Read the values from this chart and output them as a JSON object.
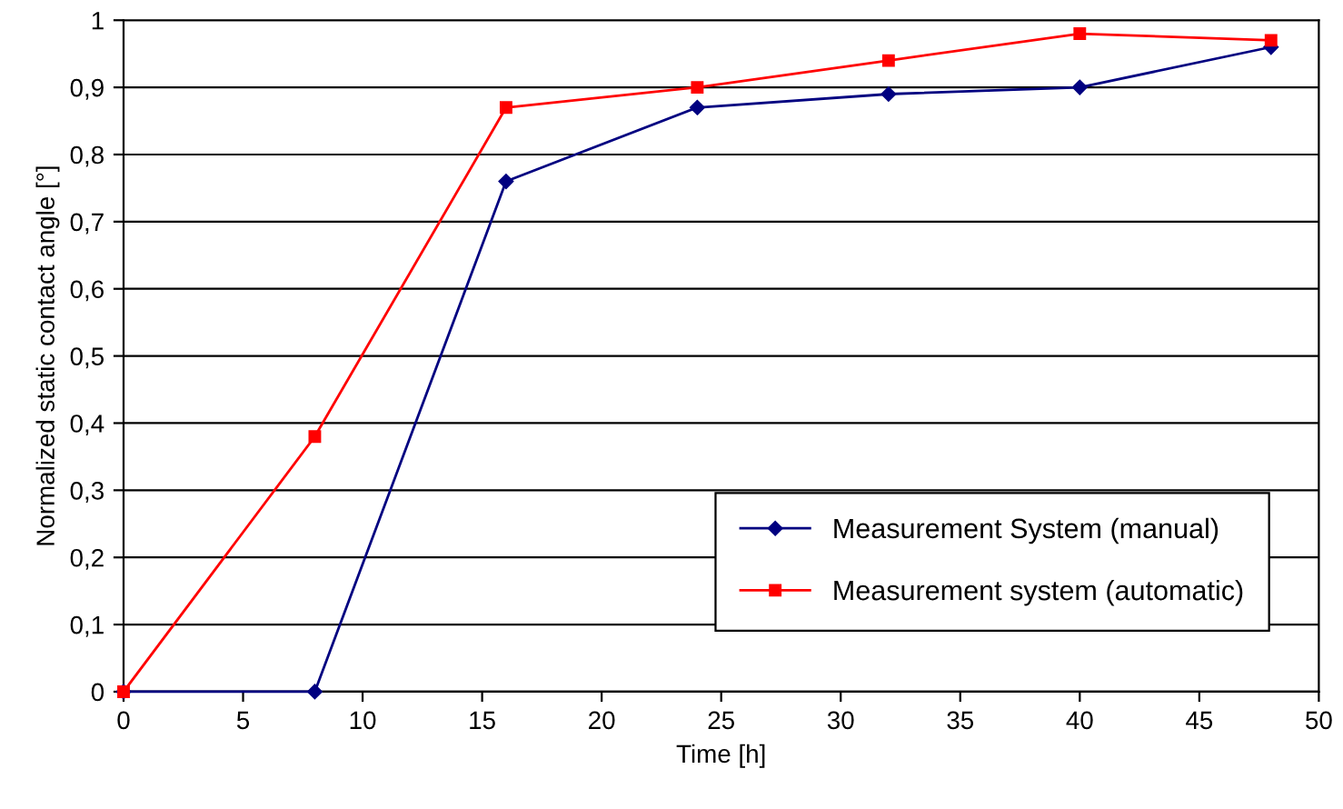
{
  "chart_data": {
    "type": "line",
    "xlabel": "Time [h]",
    "ylabel": "Normalized static contact angle [°]",
    "x": [
      0,
      8,
      16,
      24,
      32,
      40,
      48
    ],
    "series": [
      {
        "name": "Measurement System (manual)",
        "color": "#000080",
        "marker": "diamond",
        "values": [
          0,
          0,
          0.76,
          0.87,
          0.89,
          0.9,
          0.96
        ]
      },
      {
        "name": "Measurement system (automatic)",
        "color": "#ff0000",
        "marker": "square",
        "values": [
          0,
          0.38,
          0.87,
          0.9,
          0.94,
          0.98,
          0.97
        ]
      }
    ],
    "xlim": [
      0,
      50
    ],
    "xticks": [
      0,
      5,
      10,
      15,
      20,
      25,
      30,
      35,
      40,
      45,
      50
    ],
    "ylim": [
      0,
      1
    ],
    "yticks": [
      0,
      {
        "value": 0.1,
        "label": "0,1"
      },
      {
        "value": 0.2,
        "label": "0,2"
      },
      {
        "value": 0.3,
        "label": "0,3"
      },
      {
        "value": 0.4,
        "label": "0,4"
      },
      {
        "value": 0.5,
        "label": "0,5"
      },
      {
        "value": 0.6,
        "label": "0,6"
      },
      {
        "value": 0.7,
        "label": "0,7"
      },
      {
        "value": 0.8,
        "label": "0,8"
      },
      {
        "value": 0.9,
        "label": "0,9"
      },
      1
    ],
    "grid": "y",
    "legend": "bottom right"
  }
}
